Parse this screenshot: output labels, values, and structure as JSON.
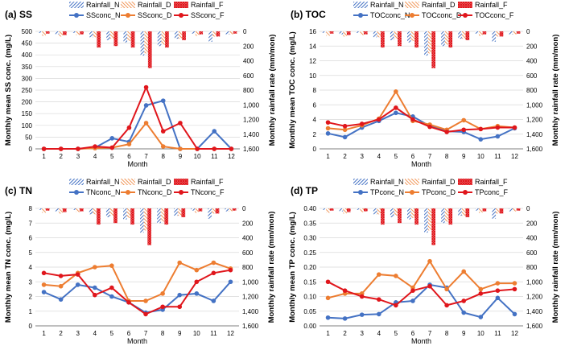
{
  "colors": {
    "N": "#4472c4",
    "D": "#ed7d31",
    "F": "#e0161c"
  },
  "months": [
    "1",
    "2",
    "3",
    "4",
    "5",
    "6",
    "7",
    "8",
    "9",
    "10",
    "11",
    "12"
  ],
  "month_label": "Month",
  "chart_data": [
    {
      "type": "line",
      "panel_label": "(a) SS",
      "ylabel": "Monthly mean SS conc. (mg/L)",
      "y2label": "Monthly rainfall rate (mm/mon)",
      "ylim": [
        0,
        500
      ],
      "yticks": [
        "0",
        "50",
        "100",
        "150",
        "200",
        "250",
        "300",
        "350",
        "400",
        "450",
        "500"
      ],
      "y2lim": [
        0,
        1600
      ],
      "y2ticks": [
        "0",
        "200",
        "400",
        "600",
        "800",
        "1,000",
        "1,200",
        "1,400",
        "1,600"
      ],
      "legend": {
        "rain_N": "Rainfall_N",
        "rain_D": "Rainfall_D",
        "rain_F": "Rainfall_F",
        "conc_N": "SSconc_N",
        "conc_D": "SSconc_D",
        "conc_F": "SSconc_F"
      },
      "series": [
        {
          "name": "SSconc_N",
          "key": "N",
          "values": [
            0,
            0,
            0,
            5,
            45,
            30,
            185,
            205,
            0,
            0,
            75,
            0
          ]
        },
        {
          "name": "SSconc_D",
          "key": "D",
          "values": [
            0,
            0,
            0,
            3,
            5,
            20,
            110,
            10,
            0,
            0,
            0,
            0
          ]
        },
        {
          "name": "SSconc_F",
          "key": "F",
          "values": [
            0,
            0,
            0,
            10,
            5,
            90,
            262,
            75,
            110,
            0,
            0,
            0
          ]
        }
      ],
      "rainfall": [
        {
          "name": "Rainfall_N",
          "key": "N",
          "values": [
            20,
            40,
            20,
            80,
            120,
            150,
            330,
            200,
            100,
            30,
            140,
            40
          ]
        },
        {
          "name": "Rainfall_D",
          "key": "D",
          "values": [
            60,
            70,
            50,
            80,
            100,
            130,
            300,
            180,
            100,
            60,
            70,
            40
          ]
        },
        {
          "name": "Rainfall_F",
          "key": "F",
          "values": [
            30,
            50,
            40,
            220,
            200,
            220,
            500,
            220,
            120,
            40,
            70,
            30
          ]
        }
      ]
    },
    {
      "type": "line",
      "panel_label": "(b) TOC",
      "ylabel": "Monthly mean TOC conc. (mg/L)",
      "y2label": "Monthly rainfall rate (mm/mon)",
      "ylim": [
        0,
        16
      ],
      "yticks": [
        "0",
        "2",
        "4",
        "6",
        "8",
        "10",
        "12",
        "14",
        "16"
      ],
      "y2lim": [
        0,
        1600
      ],
      "y2ticks": [
        "0",
        "200",
        "400",
        "600",
        "800",
        "1,000",
        "1,200",
        "1,400",
        "1,600"
      ],
      "legend": {
        "rain_N": "Rainfall_N",
        "rain_D": "Rainfall_D",
        "rain_F": "Rainfall_F",
        "conc_N": "TOCconc_N",
        "conc_D": "TOCconc_D",
        "conc_F": "TOCconc_F"
      },
      "series": [
        {
          "name": "TOCconc_N",
          "key": "N",
          "values": [
            2.1,
            1.6,
            2.9,
            3.8,
            4.9,
            4.4,
            3.1,
            2.4,
            2.3,
            1.3,
            1.7,
            2.8
          ]
        },
        {
          "name": "TOCconc_D",
          "key": "D",
          "values": [
            2.8,
            2.6,
            3.2,
            4.1,
            7.8,
            3.8,
            3.3,
            2.6,
            3.9,
            2.7,
            3.1,
            2.9
          ]
        },
        {
          "name": "TOCconc_F",
          "key": "F",
          "values": [
            3.6,
            3.1,
            3.4,
            4.0,
            5.6,
            4.0,
            3.0,
            2.3,
            2.6,
            2.7,
            2.9,
            2.9
          ]
        }
      ],
      "rainfall": [
        {
          "name": "Rainfall_N",
          "key": "N",
          "values": [
            20,
            40,
            20,
            80,
            120,
            150,
            330,
            200,
            100,
            30,
            140,
            40
          ]
        },
        {
          "name": "Rainfall_D",
          "key": "D",
          "values": [
            60,
            70,
            50,
            80,
            100,
            130,
            300,
            180,
            100,
            60,
            70,
            40
          ]
        },
        {
          "name": "Rainfall_F",
          "key": "F",
          "values": [
            30,
            50,
            40,
            220,
            200,
            220,
            500,
            220,
            120,
            40,
            70,
            30
          ]
        }
      ]
    },
    {
      "type": "line",
      "panel_label": "(c) TN",
      "ylabel": "Monthly mean TN conc. (mg/L)",
      "y2label": "Monthly rainfall rate (mm/mon)",
      "ylim": [
        0,
        8
      ],
      "yticks": [
        "0",
        "1",
        "2",
        "3",
        "4",
        "5",
        "6",
        "7",
        "8"
      ],
      "y2lim": [
        0,
        1600
      ],
      "y2ticks": [
        "0",
        "200",
        "400",
        "600",
        "800",
        "1,000",
        "1,200",
        "1,400",
        "1,600"
      ],
      "legend": {
        "rain_N": "Rainfall_N",
        "rain_D": "Rainfall_D",
        "rain_F": "Rainfall_F",
        "conc_N": "TNconc_N",
        "conc_D": "TNconc_D",
        "conc_F": "TNconc_F"
      },
      "series": [
        {
          "name": "TNconc_N",
          "key": "N",
          "values": [
            2.3,
            1.8,
            2.8,
            2.6,
            2.0,
            1.6,
            0.9,
            1.1,
            2.1,
            2.2,
            1.7,
            3.0
          ]
        },
        {
          "name": "TNconc_D",
          "key": "D",
          "values": [
            2.8,
            2.7,
            3.6,
            4.0,
            4.1,
            1.7,
            1.7,
            2.2,
            4.3,
            3.8,
            4.3,
            3.9
          ]
        },
        {
          "name": "TNconc_F",
          "key": "F",
          "values": [
            3.6,
            3.4,
            3.5,
            2.1,
            2.6,
            1.6,
            0.8,
            1.3,
            1.3,
            3.0,
            3.6,
            3.8
          ]
        }
      ],
      "rainfall": [
        {
          "name": "Rainfall_N",
          "key": "N",
          "values": [
            20,
            40,
            20,
            80,
            120,
            150,
            330,
            200,
            100,
            30,
            140,
            40
          ]
        },
        {
          "name": "Rainfall_D",
          "key": "D",
          "values": [
            60,
            70,
            50,
            80,
            100,
            130,
            300,
            180,
            100,
            60,
            70,
            40
          ]
        },
        {
          "name": "Rainfall_F",
          "key": "F",
          "values": [
            30,
            50,
            40,
            220,
            200,
            220,
            500,
            220,
            120,
            40,
            70,
            30
          ]
        }
      ]
    },
    {
      "type": "line",
      "panel_label": "(d) TP",
      "ylabel": "Monthly mean TP conc. (mg/L)",
      "y2label": "Monthly rainfall rate (mm/mon)",
      "ylim": [
        0,
        0.4
      ],
      "yticks": [
        "0.00",
        "0.05",
        "0.10",
        "0.15",
        "0.20",
        "0.25",
        "0.30",
        "0.35",
        "0.40"
      ],
      "y2lim": [
        0,
        1600
      ],
      "y2ticks": [
        "0",
        "200",
        "400",
        "600",
        "800",
        "1,000",
        "1,200",
        "1,400",
        "1,600"
      ],
      "legend": {
        "rain_N": "Rainfall_N",
        "rain_D": "Rainfall_D",
        "rain_F": "Rainfall_F",
        "conc_N": "TPconc_N",
        "conc_D": "TPconc_D",
        "conc_F": "TPconc_F"
      },
      "series": [
        {
          "name": "TPconc_N",
          "key": "N",
          "values": [
            0.028,
            0.025,
            0.038,
            0.04,
            0.08,
            0.085,
            0.14,
            0.13,
            0.045,
            0.03,
            0.095,
            0.04
          ]
        },
        {
          "name": "TPconc_D",
          "key": "D",
          "values": [
            0.095,
            0.11,
            0.11,
            0.175,
            0.17,
            0.13,
            0.22,
            0.125,
            0.185,
            0.125,
            0.145,
            0.145
          ]
        },
        {
          "name": "TPconc_F",
          "key": "F",
          "values": [
            0.15,
            0.12,
            0.1,
            0.09,
            0.07,
            0.12,
            0.135,
            0.07,
            0.085,
            0.11,
            0.12,
            0.125
          ]
        }
      ],
      "rainfall": [
        {
          "name": "Rainfall_N",
          "key": "N",
          "values": [
            20,
            40,
            20,
            80,
            120,
            150,
            330,
            200,
            100,
            30,
            140,
            40
          ]
        },
        {
          "name": "Rainfall_D",
          "key": "D",
          "values": [
            60,
            70,
            50,
            80,
            100,
            130,
            300,
            180,
            100,
            60,
            70,
            40
          ]
        },
        {
          "name": "Rainfall_F",
          "key": "F",
          "values": [
            30,
            50,
            40,
            220,
            200,
            220,
            500,
            220,
            120,
            40,
            70,
            30
          ]
        }
      ]
    }
  ]
}
